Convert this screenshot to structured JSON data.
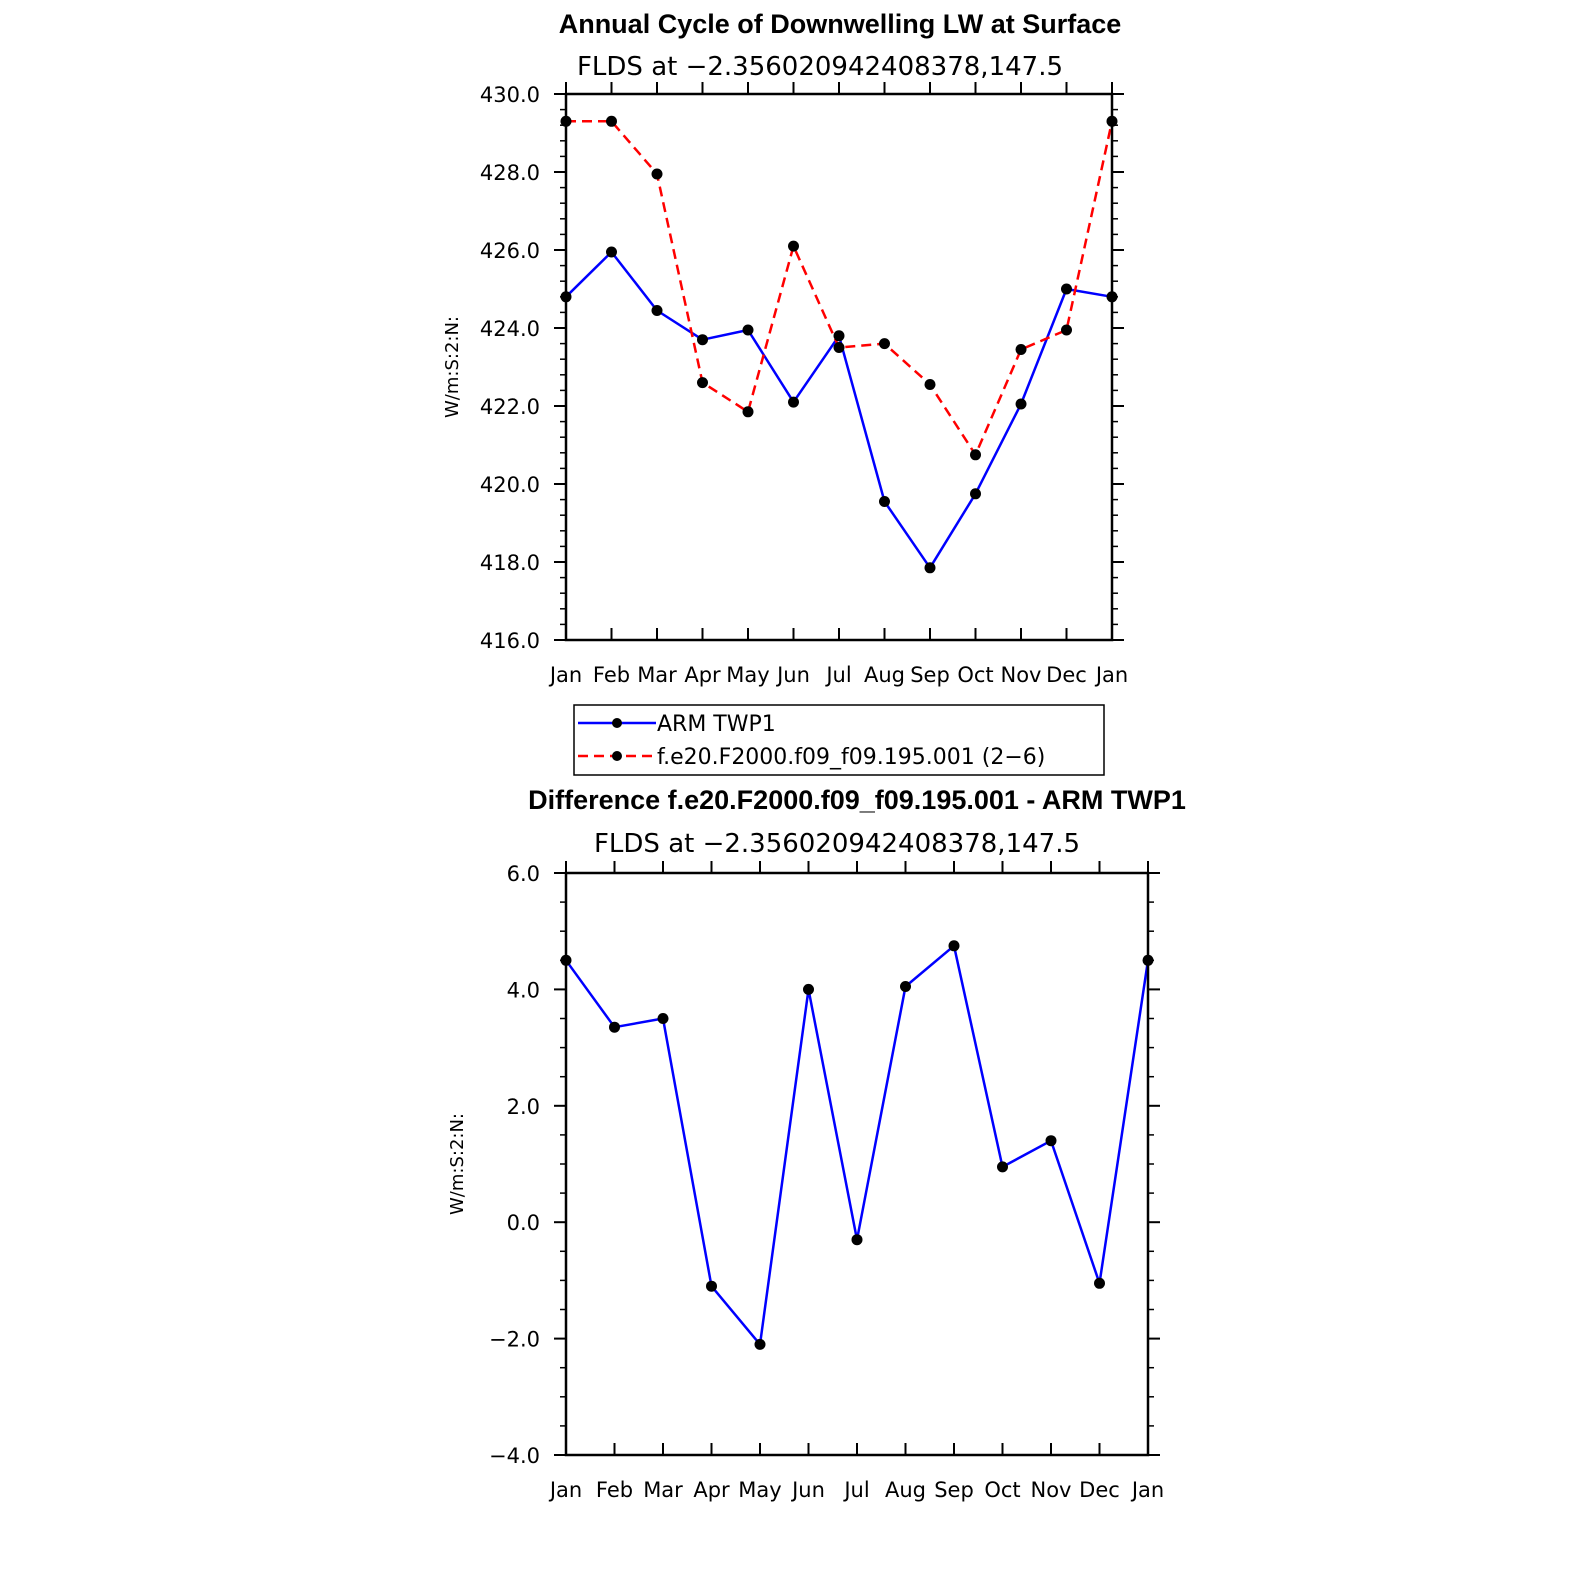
{
  "chart_data": [
    {
      "type": "line",
      "title": "Annual Cycle of Downwelling LW at Surface",
      "subtitle": "FLDS at −2.356020942408378,147.5",
      "ylabel": "W/m:S:2:N:",
      "xlabel": "",
      "categories": [
        "Jan",
        "Feb",
        "Mar",
        "Apr",
        "May",
        "Jun",
        "Jul",
        "Aug",
        "Sep",
        "Oct",
        "Nov",
        "Dec",
        "Jan"
      ],
      "ylim": [
        416.0,
        430.0
      ],
      "yticks": [
        "416.0",
        "418.0",
        "420.0",
        "422.0",
        "424.0",
        "426.0",
        "428.0",
        "430.0"
      ],
      "series": [
        {
          "name": "ARM TWP1",
          "color": "#0000ff",
          "dash": "solid",
          "values": [
            424.8,
            425.95,
            424.45,
            423.7,
            423.95,
            422.1,
            423.8,
            419.55,
            417.85,
            419.75,
            422.05,
            425.0,
            424.8
          ]
        },
        {
          "name": "f.e20.F2000.f09_f09.195.001 (2−6)",
          "color": "#ff0000",
          "dash": "dashed",
          "values": [
            429.3,
            429.3,
            427.95,
            422.6,
            421.85,
            426.1,
            423.5,
            423.6,
            422.55,
            420.75,
            423.45,
            423.95,
            429.3
          ]
        }
      ],
      "legend": "below"
    },
    {
      "type": "line",
      "title": "Difference f.e20.F2000.f09_f09.195.001 - ARM TWP1",
      "subtitle": "FLDS at −2.356020942408378,147.5",
      "ylabel": "W/m:S:2:N:",
      "xlabel": "",
      "categories": [
        "Jan",
        "Feb",
        "Mar",
        "Apr",
        "May",
        "Jun",
        "Jul",
        "Aug",
        "Sep",
        "Oct",
        "Nov",
        "Dec",
        "Jan"
      ],
      "ylim": [
        -4.0,
        6.0
      ],
      "yticks": [
        "−4.0",
        "−2.0",
        "0.0",
        "2.0",
        "4.0",
        "6.0"
      ],
      "series": [
        {
          "color": "#0000ff",
          "dash": "solid",
          "values": [
            4.5,
            3.35,
            3.5,
            -1.1,
            -2.1,
            4.0,
            -0.3,
            4.05,
            4.75,
            0.95,
            1.4,
            -1.05,
            4.5
          ]
        }
      ]
    }
  ]
}
